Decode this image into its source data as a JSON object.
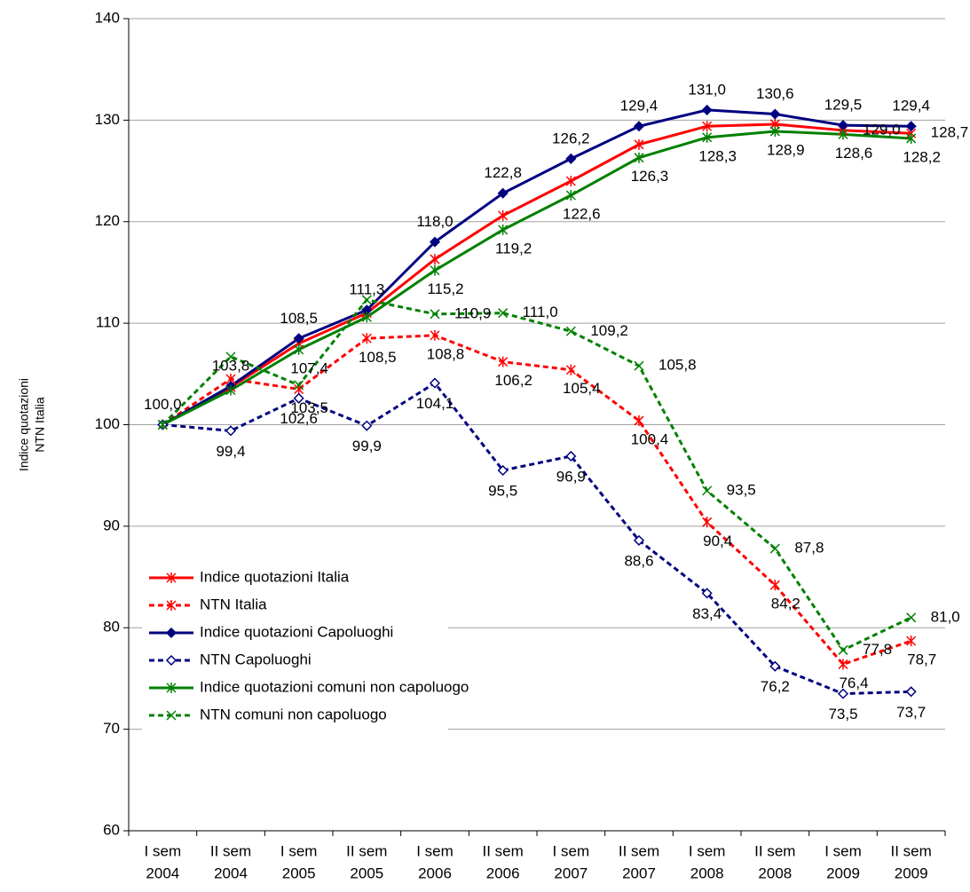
{
  "chart_data": {
    "type": "line",
    "y_label": [
      "Indice quotazioni",
      "NTN Italia"
    ],
    "categories": [
      [
        "I sem",
        "2004"
      ],
      [
        "II sem",
        "2004"
      ],
      [
        "I sem",
        "2005"
      ],
      [
        "II sem",
        "2005"
      ],
      [
        "I sem",
        "2006"
      ],
      [
        "II sem",
        "2006"
      ],
      [
        "I sem",
        "2007"
      ],
      [
        "II sem",
        "2007"
      ],
      [
        "I sem",
        "2008"
      ],
      [
        "II sem",
        "2008"
      ],
      [
        "I sem",
        "2009"
      ],
      [
        "II sem",
        "2009"
      ]
    ],
    "ylim": [
      60,
      140
    ],
    "yticks": [
      60,
      70,
      80,
      90,
      100,
      110,
      120,
      130,
      140
    ],
    "grid": true,
    "legend": "lower left",
    "series": [
      {
        "name": "Indice quotazioni Italia",
        "color": "#ff0000",
        "dashed": false,
        "marker": "asterisk",
        "values": [
          100,
          103.7,
          108.0,
          111.0,
          116.3,
          120.6,
          124.0,
          127.6,
          129.4,
          129.6,
          129.0,
          128.7
        ],
        "value_labels": [
          null,
          null,
          null,
          null,
          null,
          null,
          null,
          null,
          null,
          null,
          "129,0",
          "128,7"
        ]
      },
      {
        "name": "NTN Italia",
        "color": "#ff0000",
        "dashed": true,
        "marker": "asterisk",
        "values": [
          100,
          104.5,
          103.5,
          108.5,
          108.8,
          106.2,
          105.4,
          100.4,
          90.4,
          84.2,
          76.4,
          78.7
        ],
        "value_labels": [
          null,
          null,
          "103,5",
          "108,5",
          "108,8",
          "106,2",
          "105,4",
          "100,4",
          "90,4",
          "84,2",
          "76,4",
          "78,7"
        ]
      },
      {
        "name": "Indice quotazioni Capoluoghi",
        "color": "#000080",
        "dashed": false,
        "marker": "diamond",
        "values": [
          100.0,
          103.8,
          108.5,
          111.3,
          118.0,
          122.8,
          126.2,
          129.4,
          131.0,
          130.6,
          129.5,
          129.4
        ],
        "value_labels": [
          "100,0",
          "103,8",
          "108,5",
          "111,3",
          "118,0",
          "122,8",
          "126,2",
          "129,4",
          "131,0",
          "130,6",
          "129,5",
          "129,4"
        ]
      },
      {
        "name": "NTN Capoluoghi",
        "color": "#000080",
        "dashed": true,
        "marker": "hollow-diamond",
        "values": [
          100,
          99.4,
          102.6,
          99.9,
          104.1,
          95.5,
          96.9,
          88.6,
          83.4,
          76.2,
          73.5,
          73.7
        ],
        "value_labels": [
          null,
          "99,4",
          "102,6",
          "99,9",
          "104,1",
          "95,5",
          "96,9",
          "88,6",
          "83,4",
          "76,2",
          "73,5",
          "73,7"
        ]
      },
      {
        "name": "Indice quotazioni comuni non capoluogo",
        "color": "#008000",
        "dashed": false,
        "marker": "asterisk",
        "values": [
          100,
          103.4,
          107.4,
          110.6,
          115.2,
          119.2,
          122.6,
          126.3,
          128.3,
          128.9,
          128.6,
          128.2
        ],
        "value_labels": [
          null,
          null,
          "107,4",
          null,
          "115,2",
          "119,2",
          "122,6",
          "126,3",
          "128,3",
          "128,9",
          "128,6",
          "128,2"
        ]
      },
      {
        "name": "NTN comuni non capoluogo",
        "color": "#008000",
        "dashed": true,
        "marker": "x",
        "values": [
          100,
          106.7,
          103.9,
          112.3,
          110.9,
          111.0,
          109.2,
          105.8,
          93.5,
          87.8,
          77.8,
          81.0
        ],
        "value_labels": [
          null,
          null,
          null,
          null,
          "110,9",
          "111,0",
          "109,2",
          "105,8",
          "93,5",
          "87,8",
          "77,8",
          "81,0"
        ]
      }
    ]
  }
}
